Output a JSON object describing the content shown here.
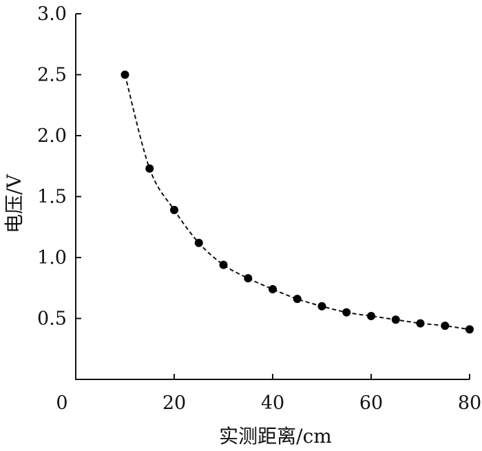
{
  "chart_data": {
    "type": "scatter",
    "title": "",
    "xlabel": "实测距离/cm",
    "ylabel": "电压/V",
    "xlim": [
      0,
      80
    ],
    "ylim": [
      0.0,
      3.0
    ],
    "x_ticks": [
      0,
      20,
      40,
      60,
      80
    ],
    "x_tick_labels": [
      "0",
      "20",
      "40",
      "60",
      "80"
    ],
    "y_ticks": [
      0.5,
      1.0,
      1.5,
      2.0,
      2.5,
      3.0
    ],
    "y_tick_labels": [
      "0.5",
      "1.0",
      "1.5",
      "2.0",
      "2.5",
      "3.0"
    ],
    "grid": false,
    "series": [
      {
        "style": "markers",
        "color": "#000000",
        "x": [
          10,
          15,
          20,
          25,
          30,
          35,
          40,
          45,
          50,
          55,
          60,
          65,
          70,
          75,
          80
        ],
        "y": [
          2.5,
          1.73,
          1.39,
          1.12,
          0.94,
          0.83,
          0.74,
          0.66,
          0.6,
          0.55,
          0.52,
          0.49,
          0.46,
          0.44,
          0.41
        ]
      },
      {
        "style": "dashed-line",
        "color": "#000000",
        "x": [
          10,
          15,
          20,
          25,
          30,
          35,
          40,
          45,
          50,
          55,
          60,
          65,
          70,
          75,
          80
        ],
        "y": [
          2.5,
          1.73,
          1.39,
          1.12,
          0.94,
          0.83,
          0.74,
          0.66,
          0.6,
          0.55,
          0.52,
          0.49,
          0.46,
          0.44,
          0.41
        ]
      }
    ]
  }
}
